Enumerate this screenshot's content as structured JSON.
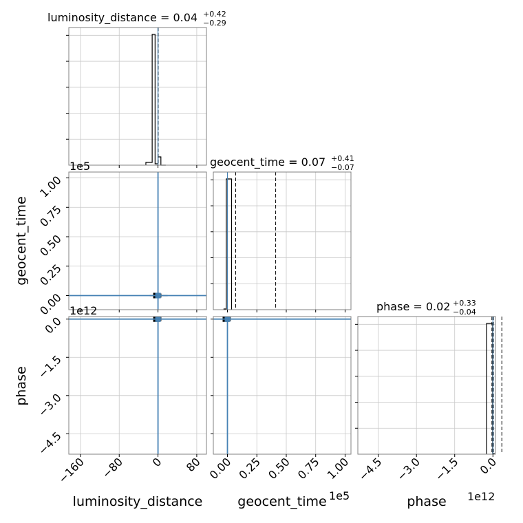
{
  "chart_data": {
    "type": "corner",
    "grid": true,
    "params": [
      "luminosity_distance",
      "geocent_time",
      "phase"
    ],
    "titles": {
      "luminosity_distance": {
        "label": "luminosity_distance = 0.04",
        "upper": "+0.42",
        "lower": "−0.29"
      },
      "geocent_time": {
        "label": "geocent_time = 0.07",
        "upper": "+0.41",
        "lower": "−0.07"
      },
      "phase": {
        "label": "phase = 0.02",
        "upper": "+0.33",
        "lower": "−0.04"
      }
    },
    "axis_labels": {
      "luminosity_distance": "luminosity_distance",
      "geocent_time": "geocent_time",
      "phase": "phase"
    },
    "offset_labels": {
      "geocent_time": "1e5",
      "phase": "1e12"
    },
    "ranges": {
      "luminosity_distance": [
        -184,
        100
      ],
      "geocent_time": [
        -0.12,
        1.05
      ],
      "phase": [
        -5.3,
        0.1
      ]
    },
    "ticks": {
      "luminosity_distance": {
        "values": [
          -160,
          -80,
          0,
          80
        ],
        "labels": [
          "−160",
          "−80",
          "0",
          "80"
        ]
      },
      "geocent_time": {
        "values": [
          0.0,
          0.25,
          0.5,
          0.75,
          1.0
        ],
        "labels": [
          "0.00",
          "0.25",
          "0.50",
          "0.75",
          "1.00"
        ]
      },
      "phase": {
        "values": [
          -4.5,
          -3.0,
          -1.5,
          0.0
        ],
        "labels": [
          "−4.5",
          "−3.0",
          "−1.5",
          "0.0"
        ]
      }
    },
    "truths": {
      "luminosity_distance": 0.04,
      "geocent_time": 0.0,
      "phase": 0.0
    },
    "histograms": {
      "luminosity_distance": {
        "edges": [
          -25,
          -12,
          -6,
          0,
          6,
          16
        ],
        "values": [
          0.02,
          0.95,
          0.01,
          0.06,
          0.0
        ],
        "quantile_lines": [
          -0.25,
          0.04,
          0.46
        ]
      },
      "geocent_time": {
        "edges": [
          -0.03,
          -0.01,
          0.035
        ],
        "values": [
          0.005,
          0.95
        ],
        "quantile_lines": [
          0.0,
          0.07,
          0.41
        ]
      },
      "phase": {
        "edges": [
          -0.25,
          -0.01,
          0.05
        ],
        "values": [
          0.95,
          0.005
        ],
        "quantile_lines": [
          -0.04,
          0.02,
          0.35
        ]
      }
    },
    "truth_color": "#4682b4",
    "hist_color": "#000000",
    "grid_color": "#c8c8c8",
    "frame_color": "#808080"
  }
}
